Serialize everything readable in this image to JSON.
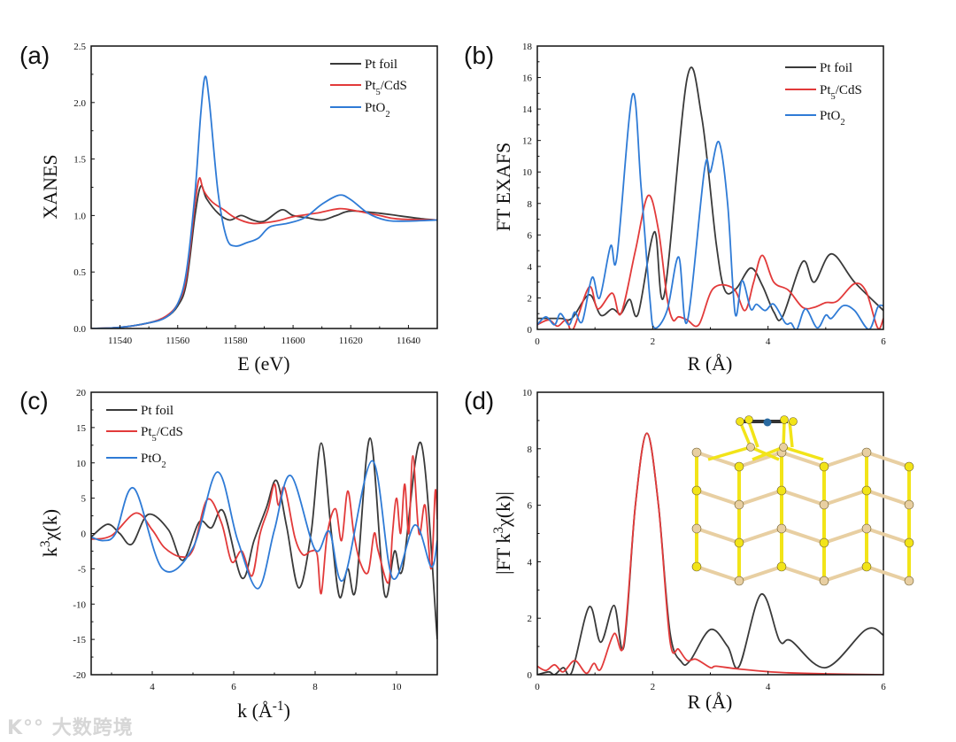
{
  "watermark": "K°° 大数跨境",
  "colors": {
    "Pt foil": "#3a3a3a",
    "Pt5/CdS": "#e23a3a",
    "PtO2": "#2f7bd6",
    "inset_cd": "#e8cfa2",
    "inset_s": "#f2e418",
    "inset_pt": "#2a6aa0"
  },
  "chart_data": [
    {
      "panel": "(a)",
      "type": "line",
      "xlabel": [
        {
          "t": "E (eV)"
        }
      ],
      "ylabel": [
        {
          "t": "XANES"
        }
      ],
      "xlim": [
        11530,
        11650
      ],
      "ylim": [
        0,
        2.5
      ],
      "xticks": [
        11540,
        11560,
        11580,
        11600,
        11620,
        11640
      ],
      "xtick_labels": [
        "11540",
        "11560",
        "11580",
        "11600",
        "11620",
        "11640"
      ],
      "yticks": [
        0,
        0.5,
        1,
        1.5,
        2,
        2.5
      ],
      "ytick_labels": [
        "0.0",
        "0.5",
        "1.0",
        "1.5",
        "2.0",
        "2.5"
      ],
      "legend": "top-right",
      "series": [
        {
          "name": "Pt foil",
          "label": [
            {
              "t": "Pt foil"
            }
          ],
          "x": [
            11530,
            11540,
            11550,
            11556,
            11560,
            11563,
            11566,
            11568,
            11570,
            11574,
            11578,
            11582,
            11586,
            11590,
            11596,
            11600,
            11605,
            11610,
            11615,
            11620,
            11630,
            11636,
            11645,
            11650
          ],
          "y": [
            0,
            0.01,
            0.05,
            0.1,
            0.2,
            0.4,
            1.0,
            1.26,
            1.15,
            1.02,
            0.96,
            1.0,
            0.96,
            0.95,
            1.05,
            1.0,
            0.98,
            0.96,
            1.0,
            1.04,
            1.02,
            1.0,
            0.97,
            0.96
          ]
        },
        {
          "name": "Pt5/CdS",
          "label": [
            {
              "t": "Pt"
            },
            {
              "t": "5",
              "sub": true
            },
            {
              "t": "/CdS"
            }
          ],
          "x": [
            11530,
            11540,
            11550,
            11556,
            11560,
            11563,
            11566,
            11567.5,
            11569,
            11572,
            11576,
            11580,
            11586,
            11594,
            11600,
            11608,
            11616,
            11622,
            11630,
            11636,
            11650
          ],
          "y": [
            0,
            0.01,
            0.05,
            0.11,
            0.22,
            0.45,
            1.1,
            1.33,
            1.22,
            1.12,
            1.05,
            0.98,
            0.93,
            0.95,
            0.99,
            1.02,
            1.06,
            1.04,
            1.0,
            0.97,
            0.96
          ]
        },
        {
          "name": "PtO2",
          "label": [
            {
              "t": "PtO"
            },
            {
              "t": "2",
              "sub": true
            }
          ],
          "x": [
            11530,
            11540,
            11550,
            11556,
            11560,
            11563,
            11566,
            11568,
            11569.5,
            11571,
            11574,
            11577,
            11580,
            11584,
            11588,
            11592,
            11598,
            11604,
            11610,
            11616,
            11620,
            11626,
            11632,
            11638,
            11650
          ],
          "y": [
            0,
            0.01,
            0.05,
            0.1,
            0.22,
            0.5,
            1.2,
            1.9,
            2.23,
            2.0,
            1.2,
            0.8,
            0.73,
            0.76,
            0.8,
            0.9,
            0.93,
            0.98,
            1.1,
            1.18,
            1.14,
            1.02,
            0.96,
            0.95,
            0.96
          ]
        }
      ]
    },
    {
      "panel": "(b)",
      "type": "line",
      "xlabel": [
        {
          "t": "R (Å)"
        }
      ],
      "ylabel": [
        {
          "t": "FT EXAFS"
        }
      ],
      "xlim": [
        0,
        6
      ],
      "ylim": [
        0,
        18
      ],
      "xticks": [
        0,
        2,
        4,
        6
      ],
      "xtick_labels": [
        "0",
        "2",
        "4",
        "6"
      ],
      "yticks": [
        0,
        2,
        4,
        6,
        8,
        10,
        12,
        14,
        16,
        18
      ],
      "ytick_labels": [
        "0",
        "2",
        "4",
        "6",
        "8",
        "10",
        "12",
        "14",
        "16",
        "18"
      ],
      "legend": "top-right",
      "series": [
        {
          "name": "Pt foil",
          "label": [
            {
              "t": "Pt foil"
            }
          ],
          "x": [
            0,
            0.4,
            0.6,
            0.9,
            1.1,
            1.3,
            1.45,
            1.6,
            1.75,
            2.03,
            2.2,
            2.6,
            2.85,
            3.1,
            3.25,
            3.45,
            3.7,
            3.9,
            4.1,
            4.25,
            4.6,
            4.8,
            5.1,
            5.5,
            6
          ],
          "y": [
            0.7,
            0.7,
            0.7,
            2.2,
            0.9,
            1.3,
            1.0,
            1.9,
            1.0,
            6.2,
            2.2,
            16.0,
            13.5,
            5.5,
            2.5,
            2.6,
            3.9,
            2.8,
            1.1,
            0.8,
            4.3,
            3.0,
            4.8,
            3.0,
            1.2
          ]
        },
        {
          "name": "Pt5/CdS",
          "label": [
            {
              "t": "Pt"
            },
            {
              "t": "5",
              "sub": true
            },
            {
              "t": "/CdS"
            }
          ],
          "x": [
            0,
            0.2,
            0.35,
            0.5,
            0.62,
            0.9,
            1.05,
            1.3,
            1.45,
            1.7,
            1.92,
            2.1,
            2.25,
            2.35,
            2.45,
            2.6,
            2.8,
            3.05,
            3.4,
            3.6,
            3.75,
            3.9,
            4.1,
            4.35,
            4.6,
            4.8,
            5.0,
            5.2,
            5.5,
            5.7,
            5.9,
            6
          ],
          "y": [
            0.3,
            0.6,
            0.2,
            0.6,
            0.0,
            2.7,
            1.3,
            2.3,
            1.0,
            5.0,
            8.5,
            6.3,
            2.0,
            0.6,
            0.8,
            0.6,
            0.3,
            2.6,
            2.6,
            1.2,
            3.0,
            4.7,
            3.0,
            2.5,
            1.4,
            1.4,
            1.7,
            1.8,
            2.9,
            2.4,
            0.1,
            0.7
          ]
        },
        {
          "name": "PtO2",
          "label": [
            {
              "t": "PtO"
            },
            {
              "t": "2",
              "sub": true
            }
          ],
          "x": [
            0,
            0.15,
            0.3,
            0.4,
            0.55,
            0.65,
            0.78,
            0.95,
            1.08,
            1.27,
            1.38,
            1.65,
            1.8,
            1.95,
            2.03,
            2.25,
            2.45,
            2.6,
            2.9,
            3.0,
            3.15,
            3.3,
            3.43,
            3.55,
            3.7,
            3.8,
            3.95,
            4.1,
            4.3,
            4.4,
            4.5,
            4.65,
            4.85,
            5.0,
            5.1,
            5.3,
            5.5,
            5.75,
            5.9,
            6
          ],
          "y": [
            0.3,
            0.8,
            0.3,
            1.0,
            0.3,
            1.1,
            0.5,
            3.3,
            2.0,
            5.3,
            4.6,
            14.9,
            9.0,
            2.0,
            0.1,
            1.2,
            4.6,
            0.5,
            10.2,
            10.0,
            11.9,
            8.0,
            1.0,
            3.1,
            1.3,
            1.6,
            1.2,
            1.6,
            0.4,
            0.4,
            0.0,
            1.3,
            0.1,
            0.9,
            0.7,
            1.5,
            1.2,
            0.0,
            1.4,
            1.5
          ]
        }
      ]
    },
    {
      "panel": "(c)",
      "type": "line",
      "xlabel": [
        {
          "t": "k (Å"
        },
        {
          "t": "-1",
          "sup": true
        },
        {
          "t": ")"
        }
      ],
      "ylabel": [
        {
          "t": "k"
        },
        {
          "t": "3",
          "sup": true
        },
        {
          "t": "χ(k)"
        }
      ],
      "xlim": [
        2.5,
        11
      ],
      "ylim": [
        -20,
        20
      ],
      "xticks": [
        4,
        6,
        8,
        10
      ],
      "xtick_labels": [
        "4",
        "6",
        "8",
        "10"
      ],
      "yticks": [
        -20,
        -15,
        -10,
        -5,
        0,
        5,
        10,
        15,
        20
      ],
      "ytick_labels": [
        "-20",
        "-15",
        "-10",
        "-5",
        "0",
        "5",
        "10",
        "15",
        "20"
      ],
      "legend": "top-left",
      "series": [
        {
          "name": "Pt foil",
          "label": [
            {
              "t": "Pt foil"
            }
          ],
          "x": [
            2.5,
            2.9,
            3.2,
            3.5,
            3.9,
            4.4,
            4.75,
            5.15,
            5.45,
            5.75,
            6.2,
            6.5,
            6.8,
            7.05,
            7.3,
            7.6,
            7.9,
            8.15,
            8.4,
            8.6,
            8.8,
            9.0,
            9.35,
            9.7,
            9.95,
            10.15,
            10.6,
            11
          ],
          "y": [
            -0.5,
            1.3,
            0,
            -1.5,
            2.7,
            0.5,
            -3.8,
            1.6,
            0.8,
            3.1,
            -6.3,
            -1.0,
            3.6,
            7.5,
            1.0,
            -7.7,
            0.0,
            12.8,
            0.0,
            -9.0,
            -5.0,
            -7.8,
            13.5,
            -8.5,
            -2.5,
            -5.0,
            12.8,
            -15
          ]
        },
        {
          "name": "Pt5/CdS",
          "label": [
            {
              "t": "Pt"
            },
            {
              "t": "5",
              "sub": true
            },
            {
              "t": "/CdS"
            }
          ],
          "x": [
            2.5,
            3.0,
            3.6,
            4.0,
            4.3,
            4.7,
            5.0,
            5.35,
            5.7,
            5.95,
            6.2,
            6.45,
            6.65,
            6.85,
            7.0,
            7.1,
            7.25,
            7.5,
            7.7,
            7.9,
            8.05,
            8.15,
            8.3,
            8.5,
            8.65,
            8.8,
            8.95,
            9.1,
            9.3,
            9.45,
            9.55,
            9.8,
            9.9,
            10.0,
            10.1,
            10.2,
            10.3,
            10.4,
            10.55,
            10.7,
            10.85,
            10.95,
            11
          ],
          "y": [
            -0.8,
            -0.3,
            2.9,
            0.5,
            -2.0,
            -3.3,
            -2.3,
            4.8,
            1.5,
            -4.0,
            -2.5,
            -6.0,
            0.0,
            3.5,
            7.0,
            4.0,
            6.5,
            -0.5,
            -3.0,
            -2.5,
            -3.0,
            -8.5,
            0.0,
            3.5,
            -1.0,
            6.0,
            0.0,
            -4.0,
            -5.5,
            0.0,
            -2.5,
            -7.0,
            0.0,
            5.0,
            0.0,
            7.0,
            0.0,
            11.0,
            0.0,
            4.0,
            -5.0,
            6.0,
            2.0
          ]
        },
        {
          "name": "PtO2",
          "label": [
            {
              "t": "PtO"
            },
            {
              "t": "2",
              "sub": true
            }
          ],
          "x": [
            2.5,
            2.8,
            3.1,
            3.55,
            4.25,
            5.0,
            5.6,
            6.1,
            6.6,
            7.0,
            7.4,
            8.0,
            8.35,
            8.7,
            9.4,
            9.9,
            10.45,
            10.85,
            11
          ],
          "y": [
            -0.5,
            -1.0,
            0.0,
            6.4,
            -5.0,
            -2.0,
            8.7,
            -1.0,
            -7.8,
            0.5,
            8.2,
            -2.3,
            0.3,
            -6.5,
            10.3,
            -6.3,
            1.2,
            -4.7,
            -1.0
          ]
        }
      ]
    },
    {
      "panel": "(d)",
      "type": "line",
      "xlabel": [
        {
          "t": "R (Å)"
        }
      ],
      "ylabel": [
        {
          "t": "|FT k"
        },
        {
          "t": "3",
          "sup": true
        },
        {
          "t": "χ(k)|"
        }
      ],
      "xlim": [
        0,
        6
      ],
      "ylim": [
        0,
        10
      ],
      "xticks": [
        0,
        2,
        4,
        6
      ],
      "xtick_labels": [
        "0",
        "2",
        "4",
        "6"
      ],
      "yticks": [
        0,
        2,
        4,
        6,
        8,
        10
      ],
      "ytick_labels": [
        "0",
        "2",
        "4",
        "6",
        "8",
        "10"
      ],
      "legend": "none",
      "series": [
        {
          "name": "Pt foil",
          "x": [
            0,
            0.2,
            0.3,
            0.45,
            0.6,
            0.9,
            1.1,
            1.33,
            1.5,
            1.7,
            1.9,
            2.1,
            2.3,
            2.5,
            2.65,
            3.0,
            3.3,
            3.5,
            3.88,
            4.2,
            4.4,
            5.0,
            5.7,
            6
          ],
          "y": [
            0,
            0.1,
            0,
            0.25,
            0.1,
            2.4,
            1.15,
            2.45,
            1.0,
            6.0,
            8.55,
            6.0,
            1.5,
            0.45,
            0.5,
            1.6,
            1.0,
            0.3,
            2.85,
            1.2,
            1.2,
            0.25,
            1.6,
            1.4
          ]
        },
        {
          "name": "Pt5/CdS",
          "x": [
            0,
            0.15,
            0.3,
            0.45,
            0.65,
            0.85,
            0.98,
            1.1,
            1.33,
            1.5,
            1.7,
            1.9,
            2.1,
            2.3,
            2.45,
            2.6,
            2.75,
            3.0,
            3.1,
            3.5,
            4.2,
            5,
            6
          ],
          "y": [
            0.3,
            0.15,
            0.35,
            0.1,
            0.5,
            0.05,
            0.4,
            0.2,
            1.45,
            1.1,
            6.0,
            8.55,
            6.0,
            1.2,
            0.9,
            0.5,
            0.55,
            0.25,
            0.3,
            0.2,
            0.08,
            0.03,
            0.0
          ]
        }
      ]
    }
  ]
}
